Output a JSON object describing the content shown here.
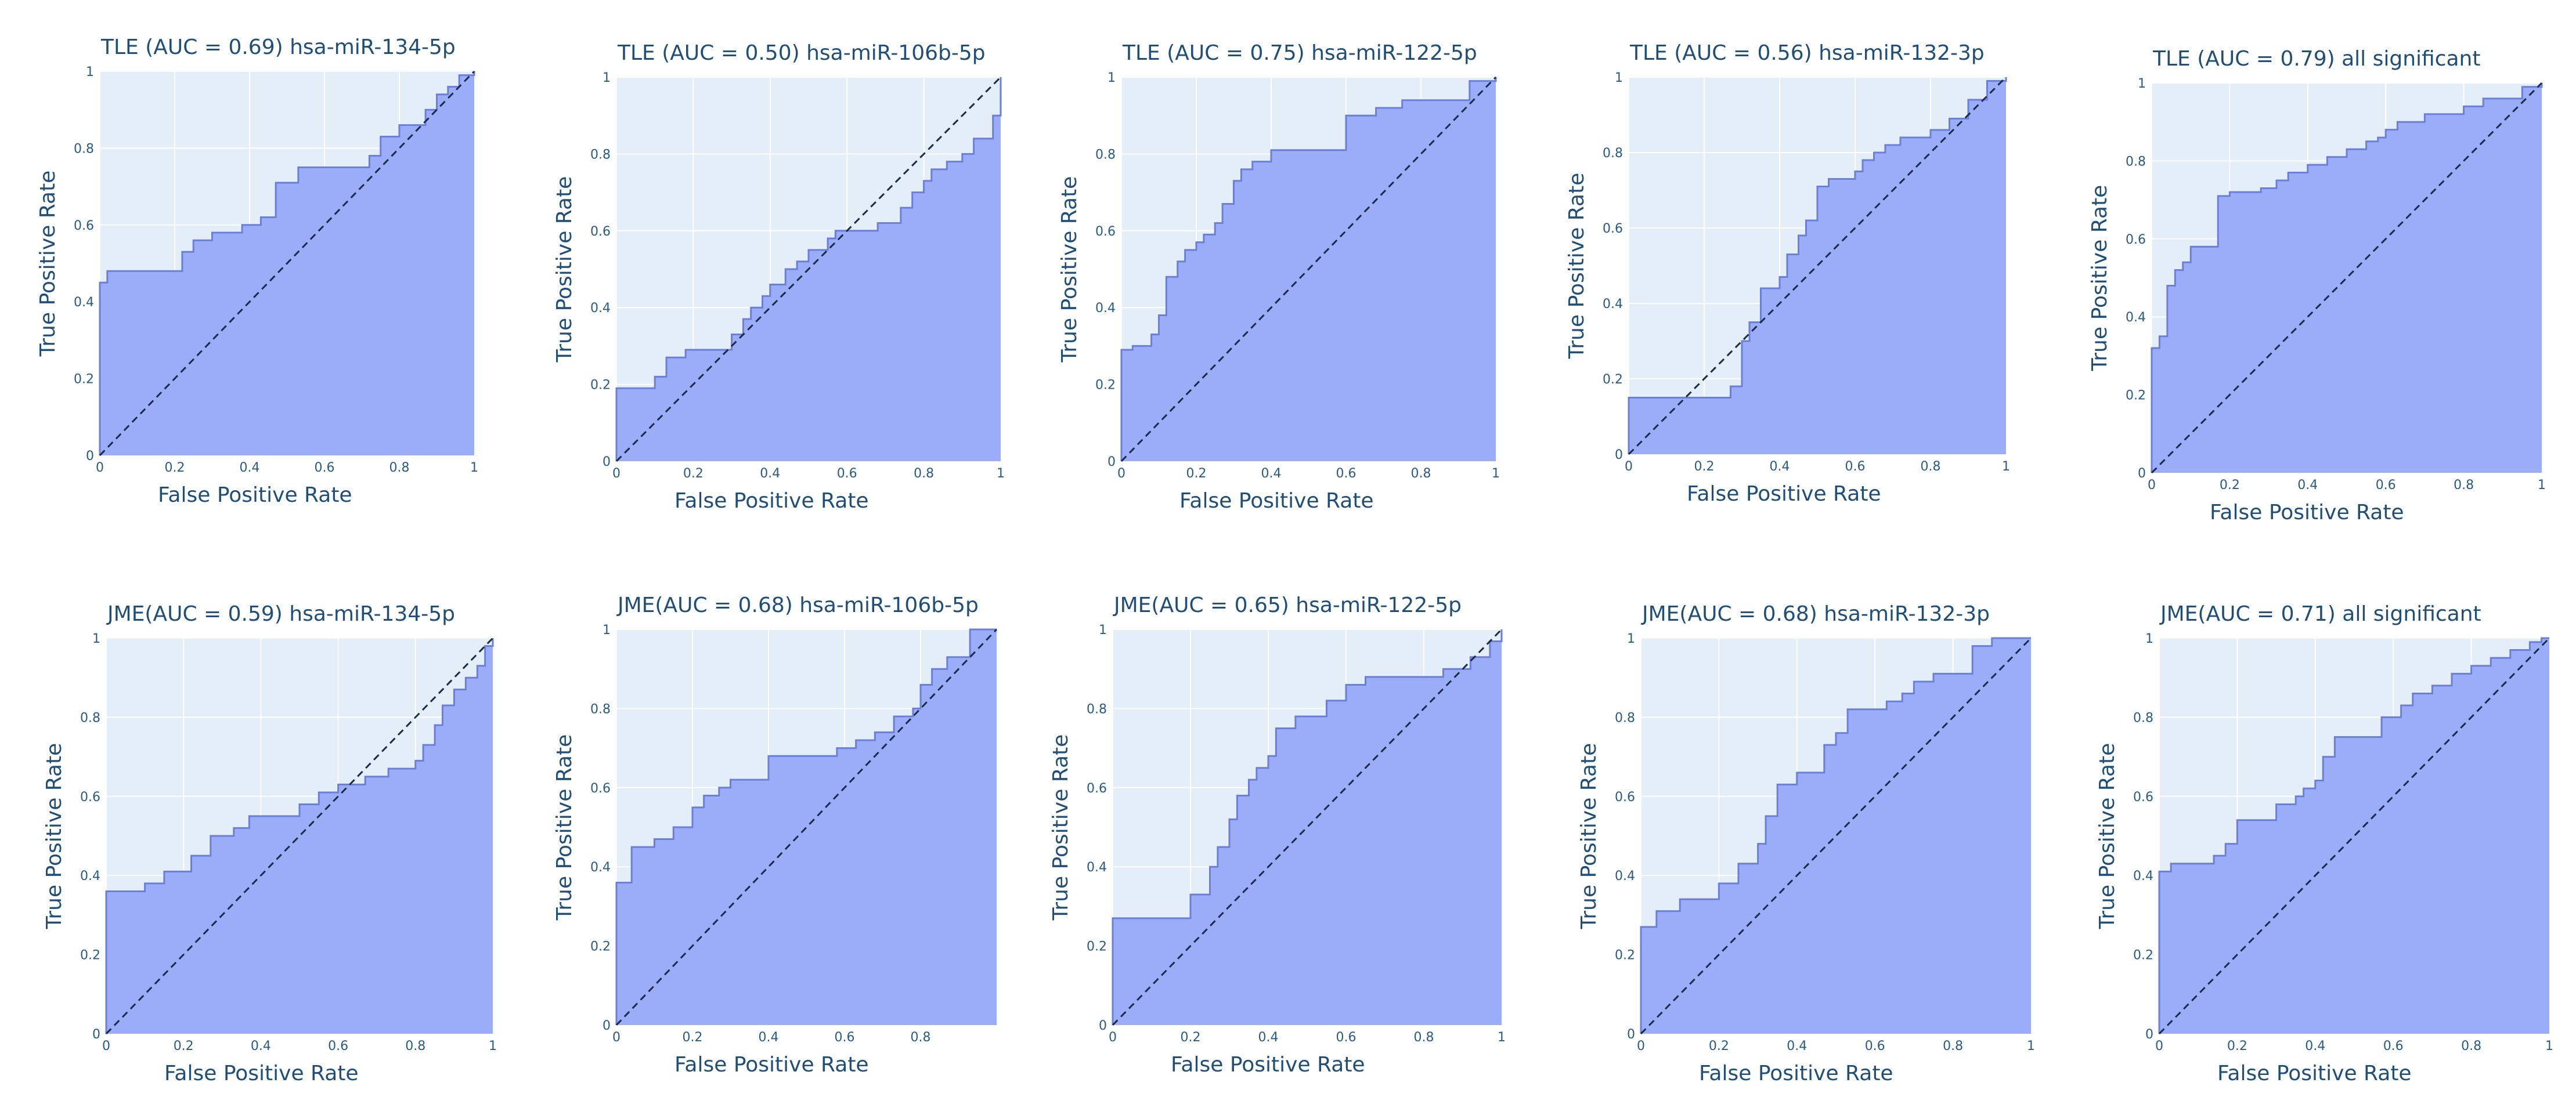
{
  "chart_data": [
    {
      "type": "area",
      "title": "TLE (AUC = 0.69) hsa-miR-134-5p",
      "xlabel": "False Positive Rate",
      "ylabel": "True Positive Rate",
      "xlim": [
        0,
        1
      ],
      "ylim": [
        0,
        1
      ],
      "xticks": [
        "0",
        "0.2",
        "0.4",
        "0.6",
        "0.8",
        "1"
      ],
      "yticks": [
        "0",
        "0.2",
        "0.4",
        "0.6",
        "0.8",
        "1"
      ],
      "grid": true,
      "x": [
        0,
        0,
        0.02,
        0.02,
        0.22,
        0.22,
        0.25,
        0.25,
        0.3,
        0.3,
        0.38,
        0.38,
        0.43,
        0.43,
        0.47,
        0.47,
        0.53,
        0.53,
        0.72,
        0.72,
        0.75,
        0.75,
        0.8,
        0.8,
        0.87,
        0.87,
        0.9,
        0.9,
        0.93,
        0.93,
        0.96,
        0.96,
        1,
        1
      ],
      "y": [
        0,
        0.45,
        0.45,
        0.48,
        0.48,
        0.53,
        0.53,
        0.56,
        0.56,
        0.58,
        0.58,
        0.6,
        0.6,
        0.62,
        0.62,
        0.71,
        0.71,
        0.75,
        0.75,
        0.78,
        0.78,
        0.83,
        0.83,
        0.86,
        0.86,
        0.9,
        0.9,
        0.94,
        0.94,
        0.96,
        0.96,
        0.99,
        0.99,
        1
      ]
    },
    {
      "type": "area",
      "title": "TLE (AUC = 0.50) hsa-miR-106b-5p",
      "xlabel": "False Positive Rate",
      "ylabel": "True Positive Rate",
      "xlim": [
        0,
        1
      ],
      "ylim": [
        0,
        1
      ],
      "xticks": [
        "0",
        "0.2",
        "0.4",
        "0.6",
        "0.8",
        "1"
      ],
      "yticks": [
        "0",
        "0.2",
        "0.4",
        "0.6",
        "0.8",
        "1"
      ],
      "grid": true,
      "x": [
        0,
        0,
        0.1,
        0.1,
        0.13,
        0.13,
        0.18,
        0.18,
        0.3,
        0.3,
        0.33,
        0.33,
        0.35,
        0.35,
        0.38,
        0.38,
        0.4,
        0.4,
        0.44,
        0.44,
        0.47,
        0.47,
        0.5,
        0.5,
        0.55,
        0.55,
        0.57,
        0.57,
        0.68,
        0.68,
        0.74,
        0.74,
        0.77,
        0.77,
        0.8,
        0.8,
        0.82,
        0.82,
        0.86,
        0.86,
        0.9,
        0.9,
        0.93,
        0.93,
        0.98,
        0.98,
        1,
        1
      ],
      "y": [
        0,
        0.19,
        0.19,
        0.22,
        0.22,
        0.27,
        0.27,
        0.29,
        0.29,
        0.33,
        0.33,
        0.37,
        0.37,
        0.4,
        0.4,
        0.43,
        0.43,
        0.46,
        0.46,
        0.5,
        0.5,
        0.52,
        0.52,
        0.55,
        0.55,
        0.58,
        0.58,
        0.6,
        0.6,
        0.62,
        0.62,
        0.66,
        0.66,
        0.7,
        0.7,
        0.73,
        0.73,
        0.76,
        0.76,
        0.78,
        0.78,
        0.8,
        0.8,
        0.84,
        0.84,
        0.9,
        0.9,
        1
      ]
    },
    {
      "type": "area",
      "title": "TLE (AUC = 0.75) hsa-miR-122-5p",
      "xlabel": "False Positive Rate",
      "ylabel": "True Positive Rate",
      "xlim": [
        0,
        1
      ],
      "ylim": [
        0,
        1
      ],
      "xticks": [
        "0",
        "0.2",
        "0.4",
        "0.6",
        "0.8",
        "1"
      ],
      "yticks": [
        "0",
        "0.2",
        "0.4",
        "0.6",
        "0.8",
        "1"
      ],
      "grid": true,
      "x": [
        0,
        0,
        0.03,
        0.03,
        0.08,
        0.08,
        0.1,
        0.1,
        0.12,
        0.12,
        0.15,
        0.15,
        0.17,
        0.17,
        0.2,
        0.2,
        0.22,
        0.22,
        0.25,
        0.25,
        0.27,
        0.27,
        0.3,
        0.3,
        0.32,
        0.32,
        0.35,
        0.35,
        0.4,
        0.4,
        0.45,
        0.45,
        0.6,
        0.6,
        0.68,
        0.68,
        0.75,
        0.75,
        0.93,
        0.93,
        1,
        1
      ],
      "y": [
        0,
        0.29,
        0.29,
        0.3,
        0.3,
        0.33,
        0.33,
        0.38,
        0.38,
        0.48,
        0.48,
        0.52,
        0.52,
        0.55,
        0.55,
        0.57,
        0.57,
        0.59,
        0.59,
        0.62,
        0.62,
        0.67,
        0.67,
        0.73,
        0.73,
        0.76,
        0.76,
        0.78,
        0.78,
        0.81,
        0.81,
        0.81,
        0.81,
        0.9,
        0.9,
        0.92,
        0.92,
        0.94,
        0.94,
        0.99,
        0.99,
        1
      ]
    },
    {
      "type": "area",
      "title": "TLE (AUC = 0.56) hsa-miR-132-3p",
      "xlabel": "False Positive Rate",
      "ylabel": "True Positive Rate",
      "xlim": [
        0,
        1
      ],
      "ylim": [
        0,
        1
      ],
      "xticks": [
        "0",
        "0.2",
        "0.4",
        "0.6",
        "0.8",
        "1"
      ],
      "yticks": [
        "0",
        "0.2",
        "0.4",
        "0.6",
        "0.8",
        "1"
      ],
      "grid": true,
      "x": [
        0,
        0,
        0.27,
        0.27,
        0.3,
        0.3,
        0.32,
        0.32,
        0.35,
        0.35,
        0.4,
        0.4,
        0.42,
        0.42,
        0.45,
        0.45,
        0.47,
        0.47,
        0.5,
        0.5,
        0.53,
        0.53,
        0.6,
        0.6,
        0.62,
        0.62,
        0.65,
        0.65,
        0.68,
        0.68,
        0.72,
        0.72,
        0.8,
        0.8,
        0.85,
        0.85,
        0.9,
        0.9,
        0.95,
        0.95,
        1,
        1
      ],
      "y": [
        0,
        0.15,
        0.15,
        0.18,
        0.18,
        0.3,
        0.3,
        0.35,
        0.35,
        0.44,
        0.44,
        0.47,
        0.47,
        0.53,
        0.53,
        0.58,
        0.58,
        0.62,
        0.62,
        0.71,
        0.71,
        0.73,
        0.73,
        0.75,
        0.75,
        0.78,
        0.78,
        0.8,
        0.8,
        0.82,
        0.82,
        0.84,
        0.84,
        0.86,
        0.86,
        0.89,
        0.89,
        0.94,
        0.94,
        0.99,
        0.99,
        1
      ]
    },
    {
      "type": "area",
      "title": "TLE (AUC = 0.79) all significant",
      "xlabel": "False Positive Rate",
      "ylabel": "True Positive Rate",
      "xlim": [
        0,
        1
      ],
      "ylim": [
        0,
        1
      ],
      "xticks": [
        "0",
        "0.2",
        "0.4",
        "0.6",
        "0.8",
        "1"
      ],
      "yticks": [
        "0",
        "0.2",
        "0.4",
        "0.6",
        "0.8",
        "1"
      ],
      "grid": true,
      "x": [
        0,
        0,
        0.02,
        0.02,
        0.04,
        0.04,
        0.06,
        0.06,
        0.08,
        0.08,
        0.1,
        0.1,
        0.17,
        0.17,
        0.2,
        0.2,
        0.28,
        0.28,
        0.32,
        0.32,
        0.35,
        0.35,
        0.4,
        0.4,
        0.45,
        0.45,
        0.5,
        0.5,
        0.55,
        0.55,
        0.58,
        0.58,
        0.6,
        0.6,
        0.63,
        0.63,
        0.7,
        0.7,
        0.8,
        0.8,
        0.85,
        0.85,
        0.95,
        0.95,
        1,
        1
      ],
      "y": [
        0,
        0.32,
        0.32,
        0.35,
        0.35,
        0.48,
        0.48,
        0.52,
        0.52,
        0.54,
        0.54,
        0.58,
        0.58,
        0.71,
        0.71,
        0.72,
        0.72,
        0.73,
        0.73,
        0.75,
        0.75,
        0.77,
        0.77,
        0.79,
        0.79,
        0.81,
        0.81,
        0.83,
        0.83,
        0.85,
        0.85,
        0.86,
        0.86,
        0.88,
        0.88,
        0.9,
        0.9,
        0.92,
        0.92,
        0.94,
        0.94,
        0.96,
        0.96,
        0.99,
        0.99,
        1
      ]
    },
    {
      "type": "area",
      "title": "JME(AUC = 0.59) hsa-miR-134-5p",
      "xlabel": "False Positive Rate",
      "ylabel": "True Positive Rate",
      "xlim": [
        0,
        1
      ],
      "ylim": [
        0,
        1
      ],
      "xticks": [
        "0",
        "0.2",
        "0.4",
        "0.6",
        "0.8",
        "1"
      ],
      "yticks": [
        "0",
        "0.2",
        "0.4",
        "0.6",
        "0.8",
        "1"
      ],
      "grid": true,
      "x": [
        0,
        0,
        0.1,
        0.1,
        0.15,
        0.15,
        0.22,
        0.22,
        0.27,
        0.27,
        0.33,
        0.33,
        0.37,
        0.37,
        0.5,
        0.5,
        0.55,
        0.55,
        0.6,
        0.6,
        0.67,
        0.67,
        0.73,
        0.73,
        0.8,
        0.8,
        0.82,
        0.82,
        0.85,
        0.85,
        0.87,
        0.87,
        0.9,
        0.9,
        0.93,
        0.93,
        0.96,
        0.96,
        0.98,
        0.98,
        1,
        1
      ],
      "y": [
        0,
        0.36,
        0.36,
        0.38,
        0.38,
        0.41,
        0.41,
        0.45,
        0.45,
        0.5,
        0.5,
        0.52,
        0.52,
        0.55,
        0.55,
        0.58,
        0.58,
        0.61,
        0.61,
        0.63,
        0.63,
        0.65,
        0.65,
        0.67,
        0.67,
        0.69,
        0.69,
        0.73,
        0.73,
        0.78,
        0.78,
        0.83,
        0.83,
        0.87,
        0.87,
        0.9,
        0.9,
        0.93,
        0.93,
        0.98,
        0.98,
        1
      ]
    },
    {
      "type": "area",
      "title": "JME(AUC = 0.68) hsa-miR-106b-5p",
      "xlabel": "False Positive Rate",
      "ylabel": "True Positive Rate",
      "xlim": [
        0,
        1
      ],
      "ylim": [
        0,
        1
      ],
      "xticks": [
        "0",
        "0.2",
        "0.4",
        "0.6",
        "0.8"
      ],
      "yticks": [
        "0",
        "0.2",
        "0.4",
        "0.6",
        "0.8",
        "1"
      ],
      "grid": true,
      "x": [
        0,
        0,
        0.04,
        0.04,
        0.1,
        0.1,
        0.15,
        0.15,
        0.2,
        0.2,
        0.23,
        0.23,
        0.27,
        0.27,
        0.3,
        0.3,
        0.4,
        0.4,
        0.58,
        0.58,
        0.63,
        0.63,
        0.68,
        0.68,
        0.73,
        0.73,
        0.78,
        0.78,
        0.8,
        0.8,
        0.83,
        0.83,
        0.87,
        0.87,
        0.93,
        0.93,
        1
      ],
      "y": [
        0,
        0.36,
        0.36,
        0.45,
        0.45,
        0.47,
        0.47,
        0.5,
        0.5,
        0.55,
        0.55,
        0.58,
        0.58,
        0.6,
        0.6,
        0.62,
        0.62,
        0.68,
        0.68,
        0.7,
        0.7,
        0.72,
        0.72,
        0.74,
        0.74,
        0.78,
        0.78,
        0.8,
        0.8,
        0.86,
        0.86,
        0.9,
        0.9,
        0.93,
        0.93,
        1,
        1
      ]
    },
    {
      "type": "area",
      "title": "JME(AUC = 0.65) hsa-miR-122-5p",
      "xlabel": "False Positive Rate",
      "ylabel": "True Positive Rate",
      "xlim": [
        0,
        1
      ],
      "ylim": [
        0,
        1
      ],
      "xticks": [
        "0",
        "0.2",
        "0.4",
        "0.6",
        "0.8",
        "1"
      ],
      "yticks": [
        "0",
        "0.2",
        "0.4",
        "0.6",
        "0.8",
        "1"
      ],
      "grid": true,
      "x": [
        0,
        0,
        0.2,
        0.2,
        0.25,
        0.25,
        0.27,
        0.27,
        0.3,
        0.3,
        0.32,
        0.32,
        0.35,
        0.35,
        0.37,
        0.37,
        0.4,
        0.4,
        0.42,
        0.42,
        0.47,
        0.47,
        0.55,
        0.55,
        0.6,
        0.6,
        0.65,
        0.65,
        0.85,
        0.85,
        0.92,
        0.92,
        0.97,
        0.97,
        1,
        1
      ],
      "y": [
        0,
        0.27,
        0.27,
        0.33,
        0.33,
        0.4,
        0.4,
        0.45,
        0.45,
        0.52,
        0.52,
        0.58,
        0.58,
        0.62,
        0.62,
        0.65,
        0.65,
        0.68,
        0.68,
        0.75,
        0.75,
        0.78,
        0.78,
        0.82,
        0.82,
        0.86,
        0.86,
        0.88,
        0.88,
        0.9,
        0.9,
        0.93,
        0.93,
        0.97,
        0.97,
        1
      ]
    },
    {
      "type": "area",
      "title": "JME(AUC = 0.68) hsa-miR-132-3p",
      "xlabel": "False Positive Rate",
      "ylabel": "True Positive Rate",
      "xlim": [
        0,
        1
      ],
      "ylim": [
        0,
        1
      ],
      "xticks": [
        "0",
        "0.2",
        "0.4",
        "0.6",
        "0.8",
        "1"
      ],
      "yticks": [
        "0",
        "0.2",
        "0.4",
        "0.6",
        "0.8",
        "1"
      ],
      "grid": true,
      "x": [
        0,
        0,
        0.04,
        0.04,
        0.1,
        0.1,
        0.2,
        0.2,
        0.25,
        0.25,
        0.3,
        0.3,
        0.32,
        0.32,
        0.35,
        0.35,
        0.4,
        0.4,
        0.47,
        0.47,
        0.5,
        0.5,
        0.53,
        0.53,
        0.63,
        0.63,
        0.67,
        0.67,
        0.7,
        0.7,
        0.75,
        0.75,
        0.85,
        0.85,
        0.9,
        0.9,
        1,
        1
      ],
      "y": [
        0,
        0.27,
        0.27,
        0.31,
        0.31,
        0.34,
        0.34,
        0.38,
        0.38,
        0.43,
        0.43,
        0.48,
        0.48,
        0.55,
        0.55,
        0.63,
        0.63,
        0.66,
        0.66,
        0.73,
        0.73,
        0.76,
        0.76,
        0.82,
        0.82,
        0.84,
        0.84,
        0.86,
        0.86,
        0.89,
        0.89,
        0.91,
        0.91,
        0.98,
        0.98,
        1,
        1,
        1
      ]
    },
    {
      "type": "area",
      "title": "JME(AUC = 0.71) all significant",
      "xlabel": "False Positive Rate",
      "ylabel": "True Positive Rate",
      "xlim": [
        0,
        1
      ],
      "ylim": [
        0,
        1
      ],
      "xticks": [
        "0",
        "0.2",
        "0.4",
        "0.6",
        "0.8",
        "1"
      ],
      "yticks": [
        "0",
        "0.2",
        "0.4",
        "0.6",
        "0.8",
        "1"
      ],
      "grid": true,
      "x": [
        0,
        0,
        0.03,
        0.03,
        0.14,
        0.14,
        0.17,
        0.17,
        0.2,
        0.2,
        0.3,
        0.3,
        0.35,
        0.35,
        0.37,
        0.37,
        0.4,
        0.4,
        0.42,
        0.42,
        0.45,
        0.45,
        0.57,
        0.57,
        0.62,
        0.62,
        0.65,
        0.65,
        0.7,
        0.7,
        0.75,
        0.75,
        0.8,
        0.8,
        0.85,
        0.85,
        0.9,
        0.9,
        0.95,
        0.95,
        0.98,
        0.98,
        1,
        1
      ],
      "y": [
        0,
        0.41,
        0.41,
        0.43,
        0.43,
        0.45,
        0.45,
        0.48,
        0.48,
        0.54,
        0.54,
        0.58,
        0.58,
        0.6,
        0.6,
        0.62,
        0.62,
        0.64,
        0.64,
        0.7,
        0.7,
        0.75,
        0.75,
        0.8,
        0.8,
        0.83,
        0.83,
        0.86,
        0.86,
        0.88,
        0.88,
        0.91,
        0.91,
        0.93,
        0.93,
        0.95,
        0.95,
        0.97,
        0.97,
        0.99,
        0.99,
        1,
        1,
        1
      ]
    }
  ]
}
